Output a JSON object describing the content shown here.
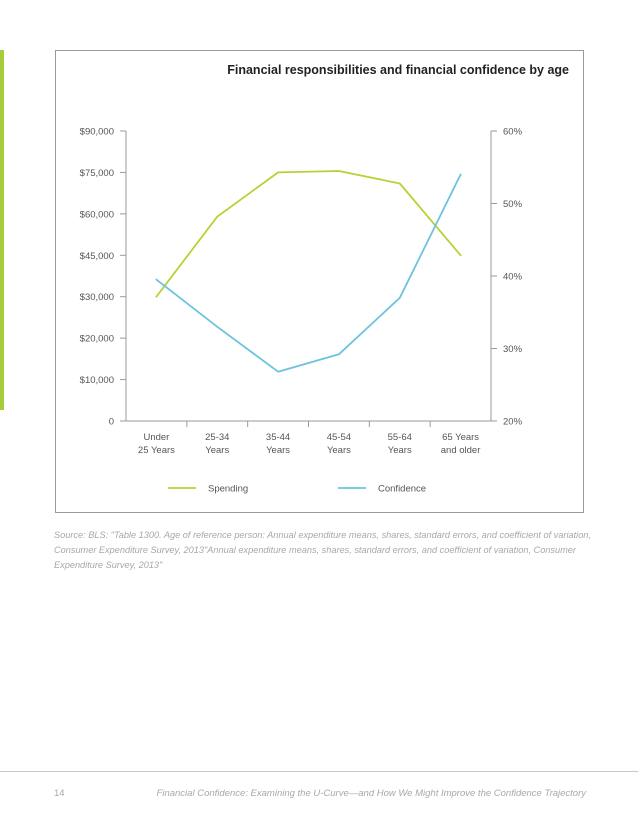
{
  "chart_data": {
    "type": "line",
    "title": "Financial responsibilities and financial confidence by age",
    "categories": [
      "Under\n25 Years",
      "25-34\nYears",
      "35-44\nYears",
      "45-54\nYears",
      "55-64\nYears",
      "65 Years\nand older"
    ],
    "y_left": {
      "ticks": [
        0,
        10000,
        20000,
        30000,
        45000,
        60000,
        75000,
        90000
      ],
      "tick_labels": [
        "0",
        "$10,000",
        "$20,000",
        "$30,000",
        "$45,000",
        "$60,000",
        "$75,000",
        "$90,000"
      ]
    },
    "y_right": {
      "ticks": [
        20,
        30,
        40,
        50,
        60
      ],
      "tick_labels": [
        "20%",
        "30%",
        "40%",
        "50%",
        "60%"
      ]
    },
    "series": [
      {
        "name": "Spending",
        "axis": "left",
        "color": "#b5d334",
        "values": [
          30000,
          59000,
          75000,
          75500,
          71000,
          45000
        ]
      },
      {
        "name": "Confidence",
        "axis": "right",
        "color": "#6cc3de",
        "values": [
          39.5,
          33,
          26.8,
          29.2,
          37,
          54
        ]
      }
    ],
    "legend_position": "bottom",
    "grid": false
  },
  "source_note": "Source: BLS: \"Table 1300. Age of reference person: Annual expenditure means, shares, standard errors, and coefficient of variation, Consumer Expenditure Survey, 2013\"Annual expenditure means, shares, standard errors, and coefficient of variation, Consumer Expenditure Survey, 2013\"",
  "footer": {
    "page_number": "14",
    "title": "Financial Confidence: Examining the U-Curve—and How We Might Improve the Confidence Trajectory"
  }
}
